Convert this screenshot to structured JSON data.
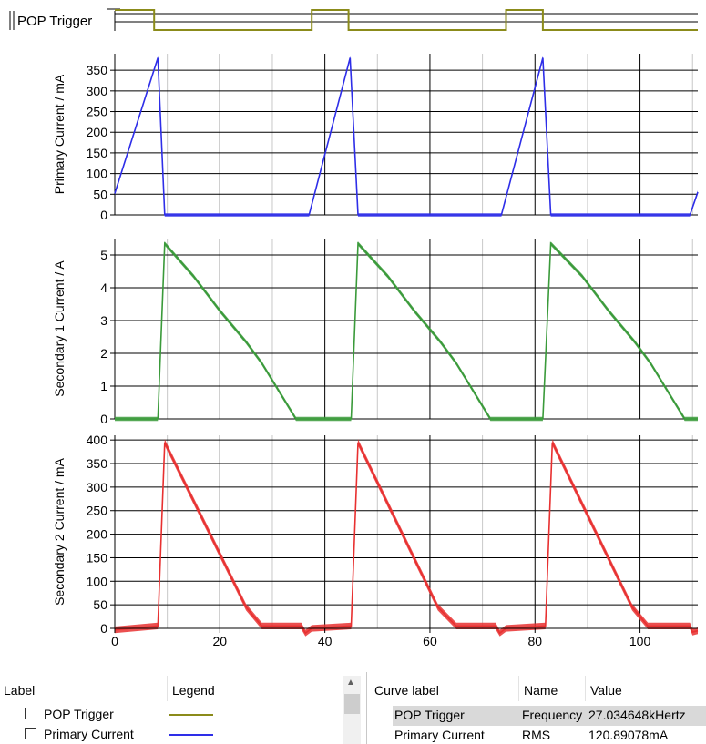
{
  "chart_data": [
    {
      "type": "line",
      "series": [
        {
          "name": "POP Trigger",
          "color": "#8b8b1a",
          "step": [
            [
              0,
              1
            ],
            [
              7.5,
              1
            ],
            [
              7.5,
              0
            ],
            [
              37.5,
              0
            ],
            [
              37.5,
              1
            ],
            [
              44.5,
              1
            ],
            [
              44.5,
              0
            ],
            [
              74.5,
              0
            ],
            [
              74.5,
              1
            ],
            [
              81.5,
              1
            ],
            [
              81.5,
              0
            ],
            [
              111,
              0
            ]
          ]
        }
      ],
      "xlim": [
        0,
        111
      ],
      "legend": "left"
    },
    {
      "type": "line",
      "ylabel": "Primary Current / mA",
      "ylim": [
        0,
        390
      ],
      "xlim": [
        0,
        111
      ],
      "yticks": [
        0,
        50,
        100,
        150,
        200,
        250,
        300,
        350
      ],
      "grid": true,
      "series": [
        {
          "name": "Primary Current",
          "color": "#2e2ee8",
          "band": 8,
          "x": [
            0,
            8.2,
            9.5,
            35.5,
            37,
            44.8,
            46.3,
            72.2,
            73.6,
            81.5,
            83,
            109.5,
            111
          ],
          "y": [
            52,
            380,
            0,
            0,
            0,
            380,
            0,
            0,
            0,
            380,
            0,
            0,
            55
          ]
        }
      ]
    },
    {
      "type": "line",
      "ylabel": "Secondary 1 Current / A",
      "ylim": [
        0,
        5.5
      ],
      "xlim": [
        0,
        111
      ],
      "yticks": [
        0,
        1,
        2,
        3,
        4,
        5
      ],
      "grid": true,
      "series": [
        {
          "name": "Secondary 1 Current",
          "color": "#3a9a3a",
          "band": 0.12,
          "x": [
            0,
            8.2,
            9.5,
            15,
            20,
            25,
            28,
            34.5,
            45,
            46.3,
            52,
            57,
            62,
            65,
            71.5,
            81.5,
            83,
            89,
            94,
            99,
            102,
            108.5,
            111
          ],
          "y": [
            0,
            0,
            5.35,
            4.35,
            3.3,
            2.35,
            1.7,
            0,
            0,
            5.35,
            4.35,
            3.3,
            2.35,
            1.7,
            0,
            0,
            5.35,
            4.35,
            3.3,
            2.35,
            1.7,
            0,
            0
          ]
        }
      ]
    },
    {
      "type": "line",
      "ylabel": "Secondary 2 Current / mA",
      "xlabel": "",
      "ylim": [
        0,
        410
      ],
      "xlim": [
        0,
        111
      ],
      "yticks": [
        0,
        50,
        100,
        150,
        200,
        250,
        300,
        350,
        400
      ],
      "xticks": [
        0,
        20,
        40,
        60,
        80,
        100
      ],
      "grid": true,
      "series": [
        {
          "name": "Secondary 2 Current",
          "color": "#e83030",
          "band": 14,
          "x": [
            0,
            8.2,
            9.5,
            25,
            28,
            35.5,
            36.3,
            37.5,
            45,
            46.3,
            61.5,
            65,
            72.5,
            73.3,
            74.5,
            82,
            83.3,
            98.5,
            101.5,
            109.5,
            110,
            111
          ],
          "y": [
            -3,
            5,
            395,
            45,
            5,
            5,
            -10,
            0,
            5,
            395,
            45,
            5,
            5,
            -10,
            0,
            5,
            395,
            45,
            5,
            5,
            -8,
            -5
          ]
        }
      ]
    }
  ],
  "legend_table": {
    "headers": [
      "Label",
      "Legend"
    ],
    "rows": [
      {
        "label": "POP Trigger",
        "color": "#8b8b1a"
      },
      {
        "label": "Primary Current",
        "color": "#2e2ee8"
      }
    ]
  },
  "measure_table": {
    "headers": [
      "Curve label",
      "Name",
      "Value"
    ],
    "rows": [
      {
        "curve": "POP Trigger",
        "name": "Frequency",
        "value": "27.034648kHertz"
      },
      {
        "curve": "Primary Current",
        "name": "RMS",
        "value": "120.89078mA"
      }
    ]
  }
}
